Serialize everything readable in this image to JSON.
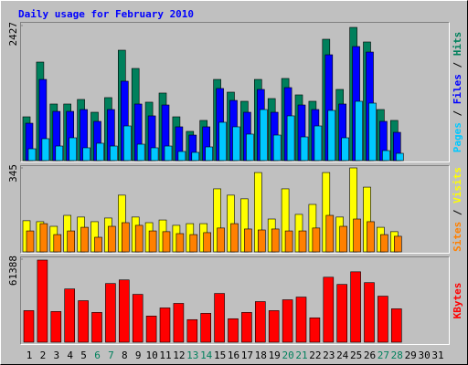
{
  "chart_data": [
    {
      "type": "bar",
      "title": "Daily usage for February 2010",
      "categories": [
        1,
        2,
        3,
        4,
        5,
        6,
        7,
        8,
        9,
        10,
        11,
        12,
        13,
        14,
        15,
        16,
        17,
        18,
        19,
        20,
        21,
        22,
        23,
        24,
        25,
        26,
        27,
        28,
        29,
        30,
        31
      ],
      "category_colors": [
        "#000000",
        "#000000",
        "#000000",
        "#000000",
        "#000000",
        "#00805c",
        "#00805c",
        "#000000",
        "#000000",
        "#000000",
        "#000000",
        "#000000",
        "#00805c",
        "#00805c",
        "#000000",
        "#000000",
        "#000000",
        "#000000",
        "#000000",
        "#00805c",
        "#00805c",
        "#000000",
        "#000000",
        "#000000",
        "#000000",
        "#000000",
        "#00805c",
        "#00805c",
        "#000000",
        "#000000",
        "#000000"
      ],
      "legend_separator": " / ",
      "ylim": [
        0,
        2427
      ],
      "yticks": [
        2427
      ],
      "series": [
        {
          "name": "Hits",
          "color": "#00805c",
          "values": [
            787,
            1771,
            1017,
            1017,
            1099,
            869,
            1132,
            1984,
            1656,
            1050,
            1214,
            787,
            525,
            722,
            1459,
            1230,
            1066,
            1459,
            1115,
            1476,
            1181,
            1066,
            2181,
            1279,
            2394,
            2132,
            918,
            722,
            null,
            null,
            null
          ]
        },
        {
          "name": "Files",
          "color": "#0000ff",
          "values": [
            672,
            1459,
            885,
            885,
            918,
            705,
            918,
            1427,
            1017,
            804,
            1000,
            607,
            459,
            607,
            1296,
            1082,
            869,
            1279,
            869,
            1312,
            1000,
            918,
            1902,
            1017,
            2050,
            1951,
            705,
            508,
            null,
            null,
            null
          ]
        },
        {
          "name": "Pages",
          "color": "#00c8ff",
          "values": [
            213,
            394,
            262,
            410,
            230,
            312,
            262,
            623,
            295,
            230,
            262,
            164,
            148,
            246,
            689,
            607,
            476,
            918,
            459,
            804,
            426,
            623,
            902,
            410,
            1066,
            1033,
            180,
            131,
            null,
            null,
            null
          ]
        }
      ]
    },
    {
      "type": "bar",
      "ylim": [
        0,
        345
      ],
      "yticks": [
        345
      ],
      "legend_separator": " / ",
      "series": [
        {
          "name": "Visits",
          "color": "#ffff00",
          "values": [
            128,
            124,
            105,
            150,
            143,
            124,
            139,
            233,
            143,
            120,
            131,
            109,
            116,
            116,
            259,
            233,
            218,
            326,
            135,
            259,
            154,
            195,
            326,
            143,
            345,
            266,
            101,
            83,
            null,
            null,
            null
          ]
        },
        {
          "name": "Sites",
          "color": "#ff8000",
          "values": [
            86,
            116,
            71,
            86,
            101,
            60,
            105,
            120,
            109,
            86,
            83,
            75,
            71,
            79,
            98,
            116,
            94,
            90,
            94,
            86,
            86,
            98,
            150,
            105,
            135,
            124,
            71,
            64,
            null,
            null,
            null
          ]
        }
      ]
    },
    {
      "type": "bar",
      "ylim": [
        0,
        61388
      ],
      "yticks": [
        61388
      ],
      "series": [
        {
          "name": "KBytes",
          "color": "#ff0000",
          "values": [
            23354,
            60720,
            22686,
            39367,
            30693,
            22019,
            43370,
            46039,
            35364,
            19350,
            25355,
            28692,
            16681,
            21352,
            36031,
            17348,
            22019,
            30026,
            23354,
            31360,
            33362,
            18015,
            48041,
            42703,
            52044,
            44037,
            34029,
            24688,
            null,
            null,
            null
          ]
        }
      ]
    }
  ]
}
